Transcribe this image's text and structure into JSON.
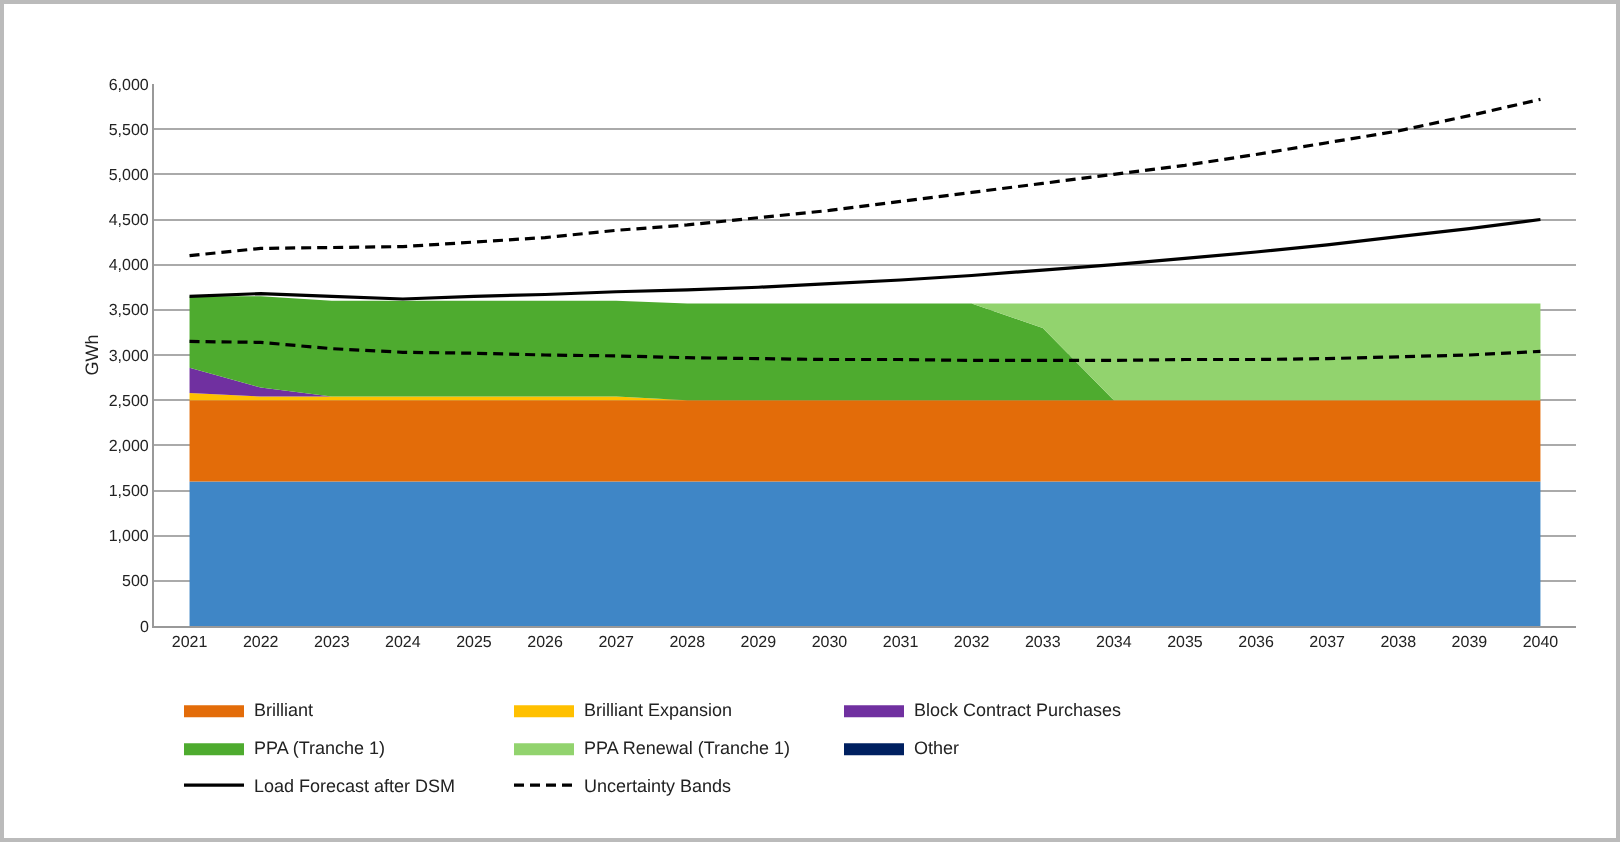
{
  "chart_data": {
    "type": "area",
    "stacked": true,
    "ylabel": "GWh",
    "categories": [
      "2021",
      "2022",
      "2023",
      "2024",
      "2025",
      "2026",
      "2027",
      "2028",
      "2029",
      "2030",
      "2031",
      "2032",
      "2033",
      "2034",
      "2035",
      "2036",
      "2037",
      "2038",
      "2039",
      "2040"
    ],
    "ylim": [
      0,
      6000
    ],
    "yticks": [
      {
        "value": 0,
        "label": "0"
      },
      {
        "value": 500,
        "label": "500"
      },
      {
        "value": 1000,
        "label": "1,000"
      },
      {
        "value": 1500,
        "label": "1,500"
      },
      {
        "value": 2000,
        "label": "2,000"
      },
      {
        "value": 2500,
        "label": "2,500"
      },
      {
        "value": 3000,
        "label": "3,000"
      },
      {
        "value": 3500,
        "label": "3,500"
      },
      {
        "value": 4000,
        "label": "4,000"
      },
      {
        "value": 4500,
        "label": "4,500"
      },
      {
        "value": 5000,
        "label": "5,000"
      },
      {
        "value": 5500,
        "label": "5,500"
      },
      {
        "value": 6000,
        "label": "6,000"
      }
    ],
    "grid": "y",
    "legend": "bottom",
    "series": [
      {
        "color": "#3f86c6",
        "values": [
          1600,
          1600,
          1600,
          1600,
          1600,
          1600,
          1600,
          1600,
          1600,
          1600,
          1600,
          1600,
          1600,
          1600,
          1600,
          1600,
          1600,
          1600,
          1600,
          1600
        ]
      },
      {
        "name": "Brilliant",
        "color": "#e36c09",
        "values": [
          900,
          900,
          900,
          900,
          900,
          900,
          900,
          900,
          900,
          900,
          900,
          900,
          900,
          900,
          900,
          900,
          900,
          900,
          900,
          900
        ]
      },
      {
        "name": "Brilliant Expansion",
        "color": "#ffc000",
        "values": [
          80,
          40,
          40,
          40,
          40,
          40,
          40,
          0,
          0,
          0,
          0,
          0,
          0,
          0,
          0,
          0,
          0,
          0,
          0,
          0
        ]
      },
      {
        "name": "Block Contract Purchases",
        "color": "#7030a0",
        "values": [
          280,
          100,
          0,
          0,
          0,
          0,
          0,
          0,
          0,
          0,
          0,
          0,
          0,
          0,
          0,
          0,
          0,
          0,
          0,
          0
        ]
      },
      {
        "name": "PPA (Tranche 1)",
        "color": "#4eab2f",
        "values": [
          790,
          1010,
          1060,
          1060,
          1060,
          1060,
          1060,
          1070,
          1070,
          1070,
          1070,
          1070,
          800,
          0,
          0,
          0,
          0,
          0,
          0,
          0
        ]
      },
      {
        "name": "PPA Renewal (Tranche 1)",
        "color": "#92d36e",
        "values": [
          null,
          null,
          null,
          null,
          null,
          null,
          null,
          null,
          null,
          null,
          null,
          0,
          270,
          1070,
          1070,
          1070,
          1070,
          1070,
          1070,
          1070
        ]
      },
      {
        "name": "Other",
        "color": "#002060",
        "values": [
          null,
          null,
          null,
          null,
          null,
          null,
          null,
          null,
          null,
          null,
          null,
          null,
          null,
          null,
          null,
          null,
          null,
          null,
          null,
          null
        ]
      },
      {
        "name": "Load Forecast after DSM",
        "type": "line",
        "color": "#000000",
        "line_style": "solid",
        "values": [
          3650,
          3680,
          3650,
          3620,
          3650,
          3670,
          3700,
          3720,
          3750,
          3790,
          3830,
          3880,
          3940,
          4000,
          4070,
          4140,
          4220,
          4310,
          4400,
          4500
        ]
      },
      {
        "name": "Uncertainty Bands",
        "type": "line",
        "color": "#000000",
        "line_style": "dashed",
        "values": [
          4100,
          4180,
          4190,
          4200,
          4250,
          4300,
          4380,
          4440,
          4520,
          4600,
          4700,
          4800,
          4900,
          5000,
          5100,
          5220,
          5350,
          5480,
          5650,
          5830
        ]
      },
      {
        "type": "line",
        "color": "#000000",
        "line_style": "dashed",
        "values": [
          3150,
          3140,
          3070,
          3030,
          3020,
          3000,
          2990,
          2970,
          2960,
          2950,
          2950,
          2940,
          2940,
          2940,
          2950,
          2950,
          2960,
          2980,
          3000,
          3040
        ]
      }
    ]
  }
}
